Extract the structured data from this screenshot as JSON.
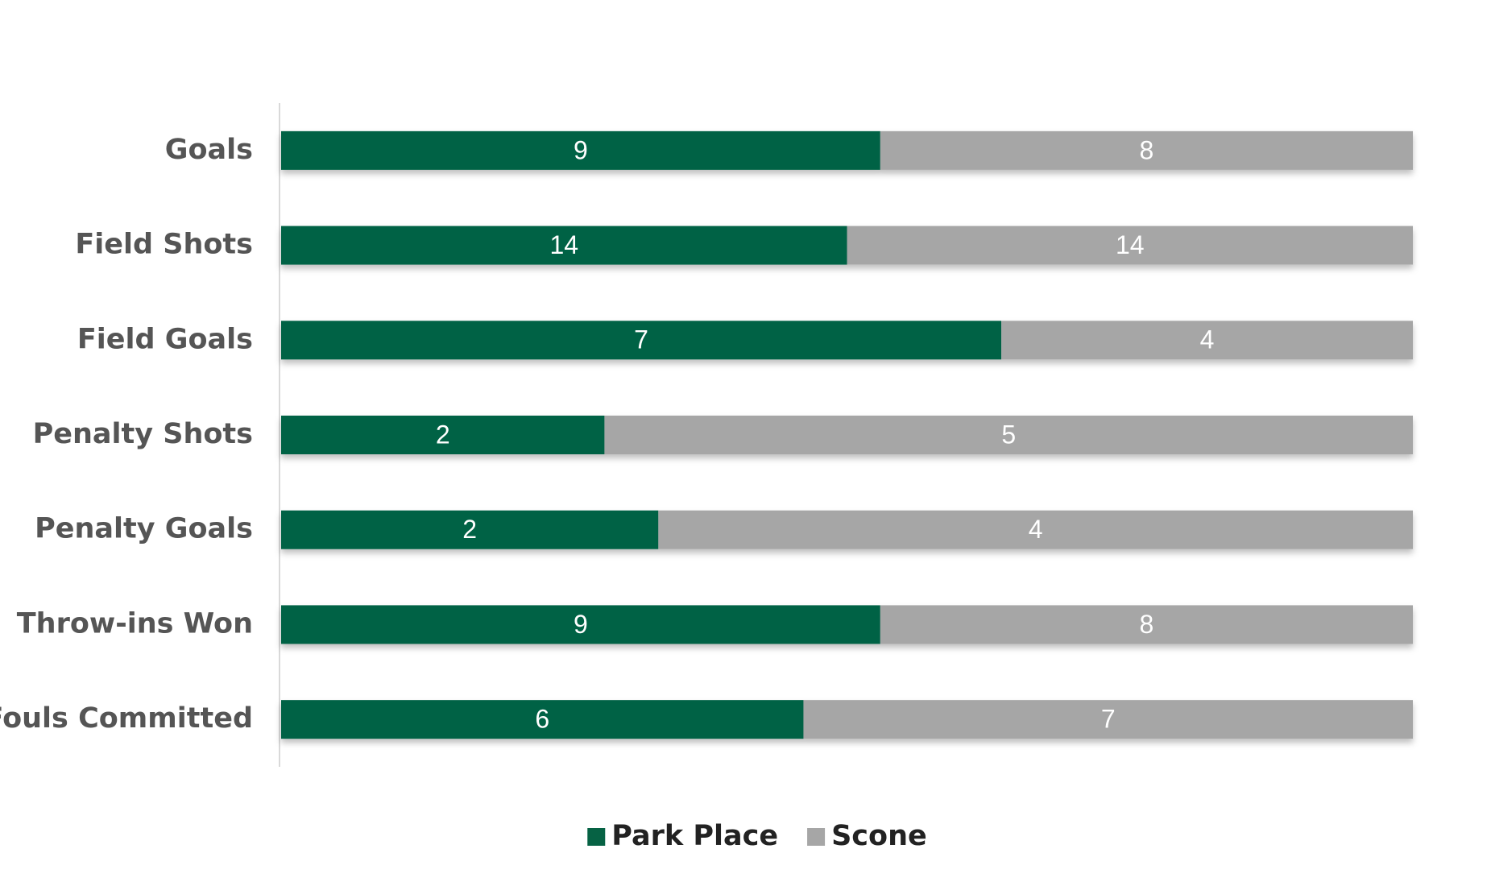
{
  "chart_data": {
    "type": "bar",
    "orientation": "horizontal",
    "stacking": "percent",
    "categories": [
      "Goals",
      "Field Shots",
      "Field Goals",
      "Penalty Shots",
      "Penalty Goals",
      "Throw-ins Won",
      "Fouls Committed"
    ],
    "series": [
      {
        "name": "Park Place",
        "color": "#066244",
        "values": [
          9,
          14,
          7,
          2,
          2,
          9,
          6
        ]
      },
      {
        "name": "Scone",
        "color": "#a6a6a6",
        "values": [
          8,
          14,
          4,
          5,
          4,
          8,
          7
        ]
      }
    ],
    "legend": "bottom"
  }
}
